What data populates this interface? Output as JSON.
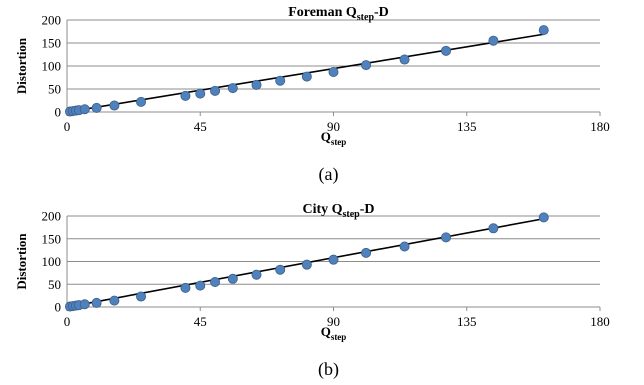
{
  "point_color": "#4f81bd",
  "chart_data": [
    {
      "type": "scatter",
      "title_main": "Foreman Q",
      "title_sub": "step",
      "title_tail": "-D",
      "xlabel_main": "Q",
      "xlabel_sub": "step",
      "ylabel": "Distortion",
      "caption": "(a)",
      "xlim": [
        0,
        180
      ],
      "ylim": [
        0,
        200
      ],
      "xticks": [
        0,
        45,
        90,
        135,
        180
      ],
      "yticks": [
        0,
        50,
        100,
        150,
        200
      ],
      "grid": "horizontal",
      "trendline": {
        "x": [
          1,
          161
        ],
        "y": [
          1,
          169
        ]
      },
      "series": [
        {
          "x": [
            1,
            2,
            3,
            4,
            6,
            10,
            16,
            25,
            40,
            45,
            50,
            56,
            64,
            72,
            81,
            90,
            101,
            114,
            128,
            144,
            161
          ],
          "y": [
            1,
            2,
            3,
            4,
            6,
            9,
            14,
            22,
            35,
            40,
            46,
            52,
            59,
            68,
            77,
            87,
            102,
            114,
            133,
            155,
            178
          ]
        }
      ]
    },
    {
      "type": "scatter",
      "title_main": "City Q",
      "title_sub": "step",
      "title_tail": "-D",
      "xlabel_main": "Q",
      "xlabel_sub": "step",
      "ylabel": "Distortion",
      "caption": "(b)",
      "xlim": [
        0,
        180
      ],
      "ylim": [
        0,
        200
      ],
      "xticks": [
        0,
        45,
        90,
        135,
        180
      ],
      "yticks": [
        0,
        50,
        100,
        150,
        200
      ],
      "grid": "horizontal",
      "trendline": {
        "x": [
          1,
          161
        ],
        "y": [
          1,
          194
        ]
      },
      "series": [
        {
          "x": [
            1,
            2,
            3,
            4,
            6,
            10,
            16,
            25,
            40,
            45,
            50,
            56,
            64,
            72,
            81,
            90,
            101,
            114,
            128,
            144,
            161
          ],
          "y": [
            1,
            2,
            3,
            4,
            6,
            9,
            14,
            23,
            42,
            47,
            55,
            62,
            71,
            82,
            93,
            104,
            119,
            133,
            153,
            173,
            197
          ]
        }
      ]
    }
  ]
}
